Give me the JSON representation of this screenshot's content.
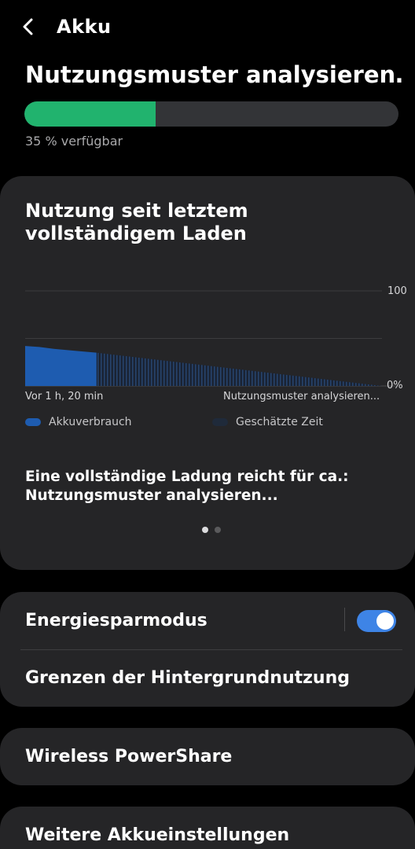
{
  "header": {
    "title": "Akku",
    "back_icon": "chevron-left-icon"
  },
  "status": {
    "title": "Nutzungsmuster analysieren…",
    "available_percent": 35,
    "available_text": "35 % verfügbar",
    "progress_color": "#21b36e"
  },
  "usage_card": {
    "title": "Nutzung seit letztem vollständigem Laden",
    "x_left_label": "Vor 1 h, 20 min",
    "x_right_label": "Nutzungsmuster analysieren...",
    "y_top_label": "100",
    "y_bottom_label": "0%",
    "legend": [
      {
        "label": "Akkuverbrauch",
        "color": "#1e5cb0"
      },
      {
        "label": "Geschätzte Zeit",
        "color": "#1f2a3a"
      }
    ],
    "estimate_text": "Eine vollständige Ladung reicht für ca.: Nutzungsmuster analysieren...",
    "page_count": 2,
    "active_page": 1
  },
  "chart_data": {
    "type": "area",
    "ylabel": "",
    "xlabel": "",
    "ylim": [
      0,
      100
    ],
    "series": [
      {
        "name": "Akkuverbrauch",
        "x": [
          0,
          4,
          8,
          14,
          20
        ],
        "values": [
          42,
          41,
          39,
          37,
          35
        ]
      },
      {
        "name": "Geschätzte Zeit",
        "x": [
          20,
          100
        ],
        "values": [
          35,
          0
        ]
      }
    ]
  },
  "settings": {
    "energy_saving_label": "Energiesparmodus",
    "energy_saving_on": true,
    "background_limits_label": "Grenzen der Hintergrundnutzung",
    "wireless_powershare_label": "Wireless PowerShare",
    "more_settings_label": "Weitere Akkueinstellungen",
    "accent_color": "#3e84e6"
  }
}
